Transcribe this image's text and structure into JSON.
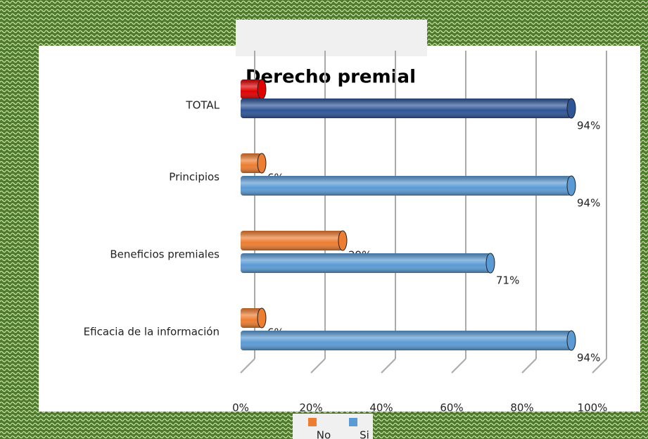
{
  "chart_data": {
    "type": "barh",
    "title": "Derecho premial",
    "categories": [
      "TOTAL",
      "Principios",
      "Beneficios premiales",
      "Eficacia de la información"
    ],
    "series": [
      {
        "name": "No",
        "color": "#ed7d31",
        "colors": [
          "#e00000",
          "#ed7d31",
          "#ed7d31",
          "#ed7d31"
        ],
        "values": [
          6,
          6,
          29,
          6
        ],
        "value_labels": [
          "6%",
          "6%",
          "29%",
          "6%"
        ]
      },
      {
        "name": "Si",
        "color": "#5b9bd5",
        "colors": [
          "#2e5597",
          "#5b9bd5",
          "#5b9bd5",
          "#5b9bd5"
        ],
        "values": [
          94,
          94,
          71,
          94
        ],
        "value_labels": [
          "94%",
          "94%",
          "71%",
          "94%"
        ]
      }
    ],
    "xlim": [
      0,
      100
    ],
    "xticks": [
      {
        "value": 0,
        "label": "0%"
      },
      {
        "value": 20,
        "label": "20%"
      },
      {
        "value": 40,
        "label": "40%"
      },
      {
        "value": 60,
        "label": "60%"
      },
      {
        "value": 80,
        "label": "80%"
      },
      {
        "value": 100,
        "label": "100%"
      }
    ],
    "grid": true,
    "legend": "bottom"
  }
}
